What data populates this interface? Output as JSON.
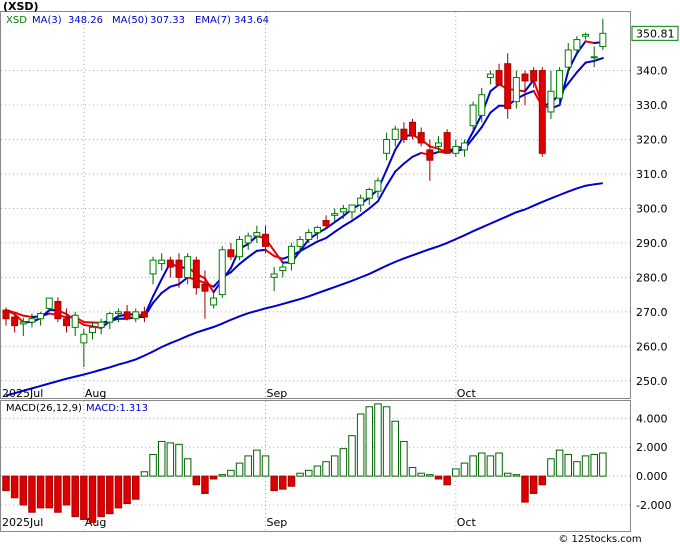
{
  "chart_data": [
    {
      "type": "candlestick",
      "title": "(XSD)",
      "legend": [
        {
          "label": "XSD",
          "color": "#008000"
        },
        {
          "label": "MA(3)",
          "value": "348.26",
          "color": "#0000cc"
        },
        {
          "label": "MA(50)",
          "value": "307.33",
          "color": "#0000cc"
        },
        {
          "label": "EMA(7)",
          "value": "343.64",
          "color": "#0000cc"
        }
      ],
      "last_price_label": "350.81",
      "ylim": [
        245,
        357
      ],
      "y_ticks": [
        250,
        260,
        270,
        280,
        290,
        300,
        310,
        320,
        330,
        340
      ],
      "x_tick_labels": [
        {
          "label": "2025Jul",
          "bar": 0
        },
        {
          "label": "Aug",
          "bar": 9
        },
        {
          "label": "Sep",
          "bar": 30
        },
        {
          "label": "Oct",
          "bar": 52
        }
      ],
      "colors": {
        "up": "#008000",
        "down": "#dd0000",
        "ma": "#0000cc",
        "ema_down": "#ee0000",
        "grid": "#aaaaaa"
      },
      "candles": [
        [
          270.5,
          271.3,
          266.0,
          268.0
        ],
        [
          268.5,
          269.3,
          264.0,
          266.0
        ],
        [
          266.5,
          268.3,
          263.0,
          267.0
        ],
        [
          267.0,
          269.5,
          265.5,
          268.0
        ],
        [
          268.0,
          270.0,
          266.0,
          269.5
        ],
        [
          271.0,
          274.0,
          270.0,
          274.0
        ],
        [
          273.0,
          274.2,
          267.0,
          268.0
        ],
        [
          268.0,
          271.0,
          264.0,
          266.0
        ],
        [
          265.5,
          270.0,
          263.0,
          269.0
        ],
        [
          261.0,
          265.0,
          254.0,
          263.5
        ],
        [
          264.0,
          267.0,
          262.0,
          265.5
        ],
        [
          265.5,
          268.0,
          263.5,
          267.0
        ],
        [
          267.0,
          270.0,
          265.0,
          269.5
        ],
        [
          269.5,
          271.0,
          267.0,
          270.0
        ],
        [
          270.0,
          272.0,
          267.5,
          268.0
        ],
        [
          268.0,
          271.0,
          267.0,
          270.0
        ],
        [
          270.0,
          271.5,
          267.0,
          268.5
        ],
        [
          281.0,
          286.0,
          278.0,
          285.0
        ],
        [
          284.0,
          287.0,
          282.0,
          285.0
        ],
        [
          285.0,
          286.0,
          280.0,
          283.0
        ],
        [
          285.0,
          287.0,
          277.0,
          280.0
        ],
        [
          280.0,
          287.0,
          278.0,
          286.0
        ],
        [
          285.0,
          286.0,
          275.0,
          277.0
        ],
        [
          278.0,
          282.0,
          268.0,
          276.0
        ],
        [
          272.0,
          276.0,
          271.0,
          274.0
        ],
        [
          275.0,
          289.0,
          274.0,
          288.0
        ],
        [
          288.0,
          290.0,
          285.0,
          286.0
        ],
        [
          286.0,
          292.0,
          285.0,
          291.0
        ],
        [
          290.0,
          293.0,
          288.0,
          292.0
        ],
        [
          292.0,
          295.0,
          290.0,
          293.0
        ],
        [
          292.5,
          295.0,
          287.0,
          289.0
        ],
        [
          280.0,
          283.0,
          276.0,
          281.0
        ],
        [
          282.0,
          284.0,
          280.0,
          283.0
        ],
        [
          284.0,
          290.0,
          282.0,
          289.0
        ],
        [
          289.0,
          292.0,
          287.0,
          291.0
        ],
        [
          291.0,
          294.0,
          290.0,
          293.0
        ],
        [
          293.0,
          295.0,
          291.0,
          294.5
        ],
        [
          296.5,
          298.0,
          294.0,
          295.0
        ],
        [
          298.0,
          300.0,
          296.0,
          298.5
        ],
        [
          299.0,
          301.0,
          297.0,
          300.0
        ],
        [
          299.0,
          301.0,
          297.0,
          301.0
        ],
        [
          301.0,
          304.0,
          299.0,
          303.0
        ],
        [
          303.0,
          306.0,
          301.0,
          305.5
        ],
        [
          305.0,
          309.0,
          303.0,
          308.0
        ],
        [
          316.0,
          322.0,
          314.0,
          320.0
        ],
        [
          320.0,
          324.0,
          318.0,
          323.0
        ],
        [
          323.0,
          325.0,
          319.0,
          320.0
        ],
        [
          325.0,
          326.0,
          320.0,
          321.0
        ],
        [
          322.0,
          323.5,
          318.0,
          319.0
        ],
        [
          317.0,
          320.0,
          308.0,
          314.0
        ],
        [
          318.0,
          321.0,
          316.0,
          319.0
        ],
        [
          322.0,
          323.0,
          317.0,
          316.0
        ],
        [
          316.0,
          320.0,
          315.0,
          318.0
        ],
        [
          317.0,
          320.0,
          315.0,
          319.0
        ],
        [
          324.0,
          331.0,
          323.0,
          330.0
        ],
        [
          327.0,
          335.0,
          325.0,
          333.0
        ],
        [
          338.0,
          340.0,
          336.0,
          339.0
        ],
        [
          340.0,
          342.0,
          336.0,
          336.0
        ],
        [
          342.0,
          345.0,
          326.0,
          329.0
        ],
        [
          331.0,
          340.0,
          329.0,
          338.0
        ],
        [
          339.0,
          340.0,
          330.0,
          337.0
        ],
        [
          340.0,
          341.0,
          335.0,
          337.0
        ],
        [
          340.0,
          341.0,
          315.0,
          316.0
        ],
        [
          328.0,
          340.0,
          326.0,
          334.0
        ],
        [
          332.0,
          341.0,
          330.0,
          340.0
        ],
        [
          341.0,
          348.0,
          339.0,
          346.0
        ],
        [
          346.0,
          350.0,
          345.0,
          349.0
        ],
        [
          350.0,
          351.0,
          349.0,
          350.5
        ],
        [
          344.0,
          347.0,
          341.0,
          344.0
        ],
        [
          347.0,
          355.0,
          346.0,
          350.81
        ]
      ],
      "ema7": [
        270.5,
        269.8,
        268.9,
        268.5,
        268.7,
        269.5,
        269.1,
        268.4,
        268.5,
        267.0,
        266.9,
        266.8,
        267.4,
        268.0,
        268.0,
        268.5,
        268.5,
        272.6,
        275.5,
        277.3,
        278.0,
        280.0,
        279.3,
        278.4,
        277.3,
        280.0,
        281.5,
        283.9,
        285.9,
        287.7,
        288.0,
        286.2,
        285.4,
        286.3,
        287.6,
        289.0,
        290.4,
        291.4,
        293.2,
        294.9,
        296.4,
        298.1,
        300.0,
        302.1,
        306.6,
        310.7,
        313.0,
        315.0,
        316.1,
        315.6,
        316.4,
        316.3,
        316.7,
        317.2,
        320.4,
        323.6,
        327.8,
        329.8,
        329.8,
        331.8,
        333.1,
        334.1,
        329.6,
        330.7,
        333.0,
        336.3,
        339.5,
        342.3,
        342.8,
        343.64
      ],
      "ma3": [
        270.5,
        269.3,
        267.0,
        267.0,
        268.2,
        270.5,
        270.5,
        269.3,
        267.7,
        266.2,
        265.8,
        265.3,
        267.3,
        268.8,
        269.2,
        269.3,
        268.8,
        274.5,
        279.5,
        284.3,
        282.7,
        283.0,
        281.0,
        279.7,
        275.7,
        279.3,
        282.7,
        288.3,
        289.7,
        292.0,
        291.3,
        287.7,
        284.3,
        284.3,
        287.7,
        291.0,
        292.8,
        294.2,
        296.0,
        297.8,
        299.8,
        301.3,
        303.2,
        305.5,
        311.2,
        317.0,
        321.0,
        321.3,
        320.0,
        318.0,
        317.3,
        316.3,
        317.7,
        317.7,
        322.3,
        327.3,
        334.0,
        336.0,
        334.7,
        334.3,
        334.0,
        337.3,
        330.0,
        329.0,
        330.0,
        340.0,
        345.0,
        348.5,
        348.0,
        348.26
      ],
      "ma50": [
        245.7,
        246.4,
        247.1,
        247.8,
        248.5,
        249.2,
        249.9,
        250.6,
        251.2,
        251.8,
        252.5,
        253.2,
        253.9,
        254.7,
        255.4,
        256.2,
        257.3,
        258.5,
        259.8,
        260.9,
        261.9,
        263.0,
        264.0,
        264.8,
        265.6,
        266.6,
        267.7,
        268.7,
        269.6,
        270.3,
        271.0,
        271.6,
        272.3,
        273.0,
        273.7,
        274.5,
        275.4,
        276.3,
        277.2,
        278.1,
        279.0,
        280.0,
        281.0,
        282.2,
        283.4,
        284.5,
        285.5,
        286.4,
        287.3,
        288.2,
        289.0,
        290.0,
        291.1,
        292.2,
        293.4,
        294.5,
        295.6,
        296.7,
        297.8,
        298.9,
        299.7,
        300.8,
        301.9,
        302.9,
        303.9,
        304.9,
        305.8,
        306.6,
        307.0,
        307.33
      ]
    },
    {
      "type": "bar",
      "title": "MACD(26,12,9)",
      "legend": [
        {
          "label": "MACD:1.313",
          "color": "#0000cc"
        }
      ],
      "ylim": [
        -3.8,
        5.2
      ],
      "y_tick_labels": [
        "4.000",
        "2.000",
        "0.000",
        "-2.000"
      ],
      "y_ticks": [
        4,
        2,
        0,
        -2
      ],
      "x_tick_labels": [
        {
          "label": "2025Jul",
          "bar": 0
        },
        {
          "label": "Aug",
          "bar": 9
        },
        {
          "label": "Sep",
          "bar": 30
        },
        {
          "label": "Oct",
          "bar": 52
        }
      ],
      "values": [
        -1.0,
        -1.5,
        -2.0,
        -2.5,
        -2.2,
        -2.2,
        -2.5,
        -2.0,
        -2.8,
        -3.0,
        -3.2,
        -2.8,
        -2.6,
        -2.2,
        -1.9,
        -1.6,
        0.3,
        1.5,
        2.4,
        2.3,
        2.2,
        1.2,
        -0.6,
        -1.2,
        -0.2,
        0.1,
        0.4,
        0.9,
        1.4,
        1.8,
        1.4,
        -1.0,
        -0.9,
        -0.7,
        0.2,
        0.4,
        0.7,
        1.0,
        1.4,
        1.9,
        2.8,
        4.3,
        4.8,
        5.0,
        4.8,
        3.8,
        2.4,
        0.6,
        0.2,
        0.1,
        -0.2,
        -0.6,
        0.5,
        0.9,
        1.4,
        1.6,
        1.4,
        1.6,
        0.2,
        0.1,
        -1.8,
        -1.2,
        -0.6,
        1.2,
        1.8,
        1.5,
        1.0,
        1.4,
        1.5,
        1.6
      ],
      "colors": {
        "up": "#006400",
        "down": "#dd0000"
      }
    }
  ],
  "watermark": "© 12Stocks.com"
}
